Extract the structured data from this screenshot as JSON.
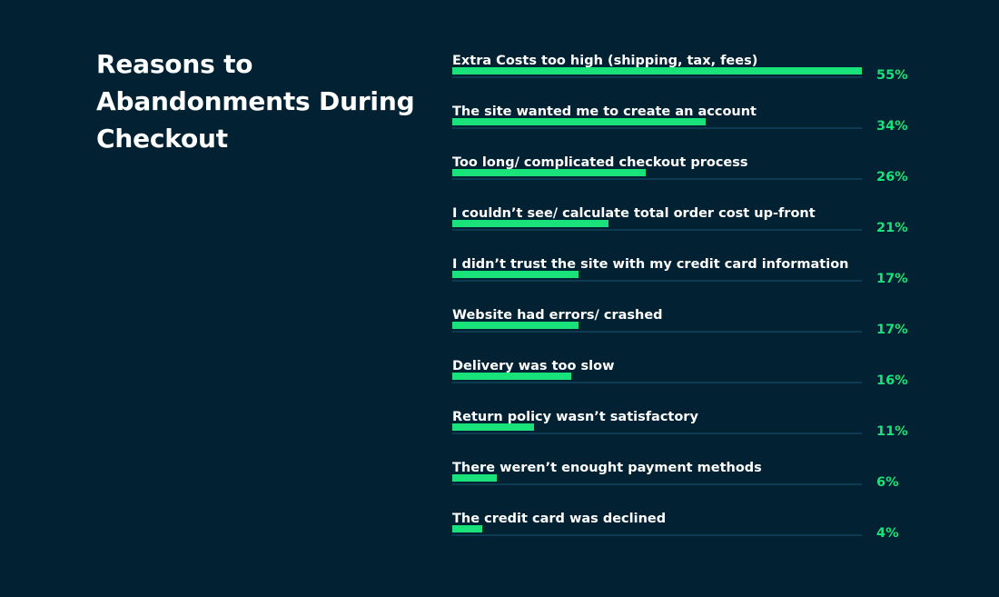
{
  "title": "Reasons to Abandonments During Checkout",
  "chart_data": {
    "type": "bar",
    "orientation": "horizontal",
    "title": "Reasons to Abandonments During Checkout",
    "categories": [
      "Extra Costs too high (shipping, tax, fees)",
      "The site wanted me to create an account",
      "Too long/ complicated checkout process",
      "I couldn’t see/ calculate total order cost up-front",
      "I didn’t trust the site with my credit card information",
      "Website had errors/ crashed",
      "Delivery was too slow",
      "Return policy wasn’t satisfactory",
      "There weren’t enought payment methods",
      "The credit card was declined"
    ],
    "values": [
      55,
      34,
      26,
      21,
      17,
      17,
      16,
      11,
      6,
      4
    ],
    "value_labels": [
      "55%",
      "34%",
      "26%",
      "21%",
      "17%",
      "17%",
      "16%",
      "11%",
      "6%",
      "4%"
    ],
    "xlim": [
      0,
      55
    ],
    "colors": {
      "background": "#022233",
      "bar": "#19e27a",
      "track": "#0c3b52",
      "text": "#ffffff",
      "value_text": "#19e27a"
    }
  }
}
